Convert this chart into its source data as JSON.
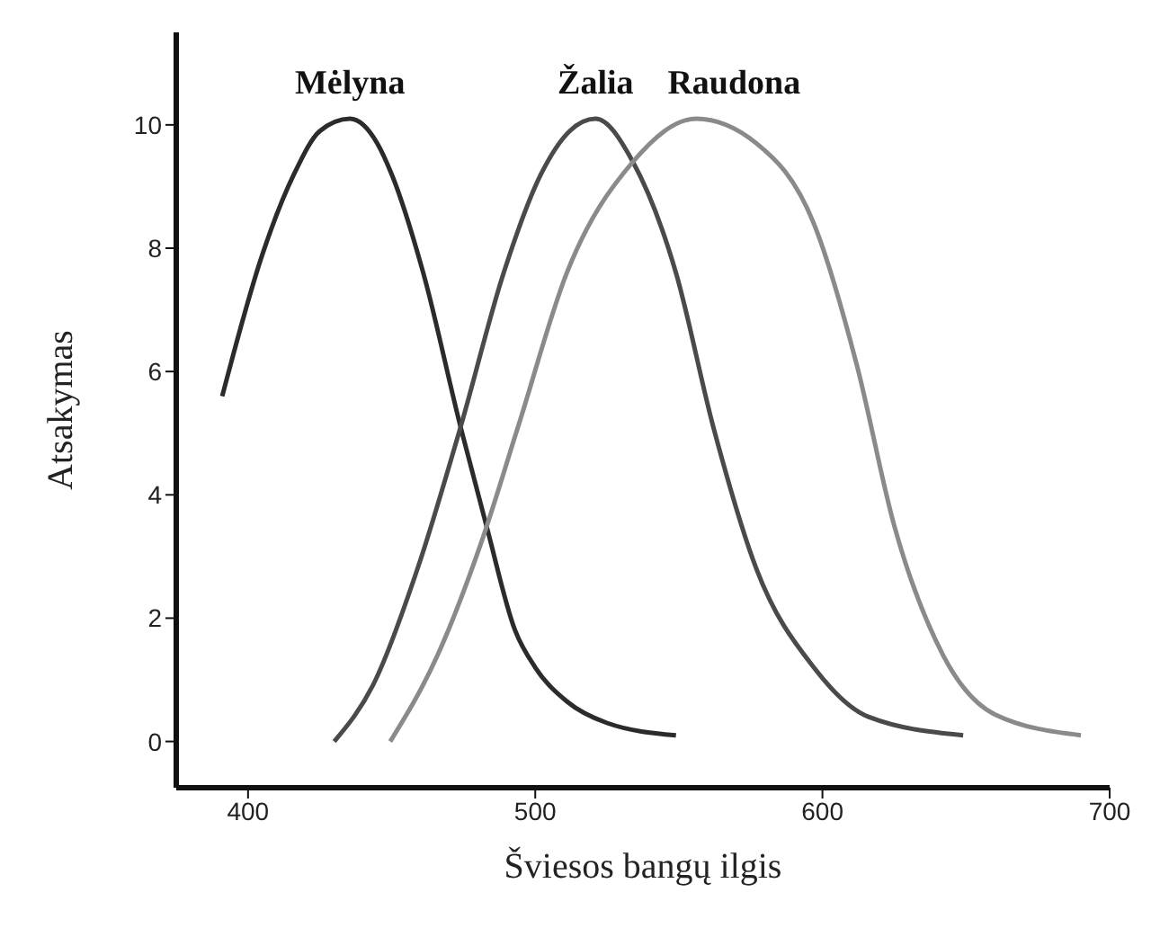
{
  "chart_data": {
    "type": "line",
    "xlabel": "Šviesos bangų ilgis",
    "ylabel": "Atsakymas",
    "xlim": [
      375,
      700
    ],
    "xticks": [
      400,
      500,
      600,
      700
    ],
    "ylim": [
      -0.75,
      11.5
    ],
    "yticks": [
      0,
      2,
      4,
      6,
      8,
      10
    ],
    "grid": false,
    "legend": false,
    "marker": "none",
    "line_style": "solid",
    "series": [
      {
        "name": "Mėlyna",
        "color": "#2b2b2b",
        "x": [
          391,
          405,
          416,
          425,
          435.5,
          445,
          450,
          461,
          474,
          483,
          493,
          500,
          511,
          525,
          549
        ],
        "values": [
          5.6,
          7.9,
          9.2,
          9.9,
          10.1,
          9.7,
          9.2,
          7.6,
          5.1,
          3.5,
          1.8,
          1.2,
          0.65,
          0.3,
          0.1
        ]
      },
      {
        "name": "Žalia",
        "color": "#4a4a4a",
        "x": [
          430,
          444,
          459,
          474,
          489,
          502,
          512,
          521,
          534,
          549,
          562,
          577,
          597,
          616,
          649
        ],
        "values": [
          0,
          0.96,
          2.8,
          5.1,
          7.6,
          9.2,
          9.9,
          10.1,
          9.4,
          7.6,
          5.1,
          2.8,
          1.2,
          0.4,
          0.1
        ]
      },
      {
        "name": "Raudona",
        "color": "#8a8a8a",
        "x": [
          449.5,
          466,
          481,
          494,
          511,
          534,
          556,
          577,
          597,
          612,
          625,
          642,
          660,
          690
        ],
        "values": [
          0,
          1.4,
          3.2,
          5.1,
          7.6,
          9.4,
          10.1,
          9.7,
          8.4,
          6.1,
          3.5,
          1.4,
          0.44,
          0.1
        ]
      }
    ]
  }
}
